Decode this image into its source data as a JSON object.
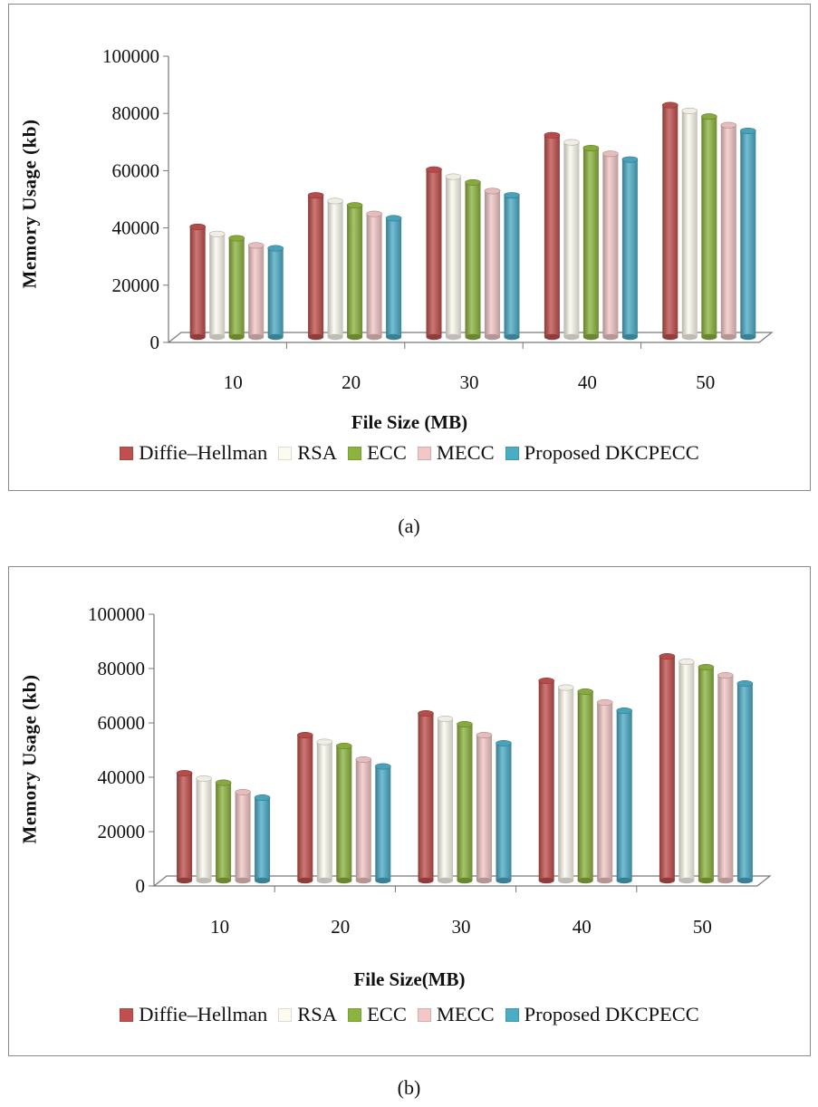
{
  "series_colors": [
    "#c0504d",
    "#fdfbf0",
    "#8db33f",
    "#f2c7c6",
    "#4bacc6"
  ],
  "chart_data": [
    {
      "type": "bar",
      "categories": [
        "10",
        "20",
        "30",
        "40",
        "50"
      ],
      "series": [
        {
          "name": "Diffie–Hellman",
          "values": [
            38500,
            49500,
            58500,
            70500,
            81000
          ]
        },
        {
          "name": "RSA",
          "values": [
            36000,
            47500,
            56000,
            68000,
            79000
          ]
        },
        {
          "name": "ECC",
          "values": [
            34500,
            46000,
            54000,
            66000,
            77000
          ]
        },
        {
          "name": "MECC",
          "values": [
            32000,
            43000,
            51000,
            64000,
            74000
          ]
        },
        {
          "name": "Proposed DKCPECC",
          "values": [
            31000,
            41500,
            49500,
            62000,
            72000
          ]
        }
      ],
      "title": "",
      "xlabel": "File Size (MB)",
      "ylabel": "Memory Usage (kb)",
      "ylim": [
        0,
        100000
      ],
      "yticks": [
        "0",
        "20000",
        "40000",
        "60000",
        "80000",
        "100000"
      ],
      "caption": "(a)"
    },
    {
      "type": "bar",
      "categories": [
        "10",
        "20",
        "30",
        "40",
        "50"
      ],
      "series": [
        {
          "name": "Diffie–Hellman",
          "values": [
            39500,
            53500,
            61500,
            73500,
            82500
          ]
        },
        {
          "name": "RSA",
          "values": [
            37500,
            51000,
            59500,
            71000,
            80500
          ]
        },
        {
          "name": "ECC",
          "values": [
            36000,
            49500,
            57500,
            69500,
            78500
          ]
        },
        {
          "name": "MECC",
          "values": [
            32500,
            44500,
            53500,
            65500,
            75500
          ]
        },
        {
          "name": "Proposed DKCPECC",
          "values": [
            30500,
            42000,
            50500,
            62500,
            72500
          ]
        }
      ],
      "title": "",
      "xlabel": "File Size(MB)",
      "ylabel": "Memory Usage (kb)",
      "ylim": [
        0,
        100000
      ],
      "yticks": [
        "0",
        "20000",
        "40000",
        "60000",
        "80000",
        "100000"
      ],
      "caption": "(b)"
    }
  ]
}
